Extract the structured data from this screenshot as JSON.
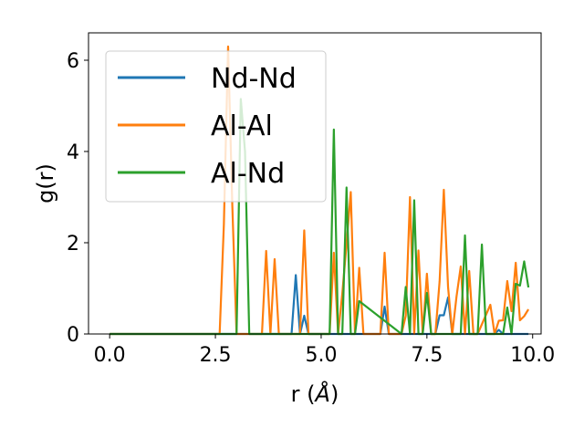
{
  "chart_data": {
    "type": "line",
    "xlabel": "r (",
    "xlabel_unit": "Å",
    "xlabel_close": ")",
    "ylabel": "g(r)",
    "xlim": [
      -0.5,
      10.2
    ],
    "ylim": [
      0,
      6.6
    ],
    "x_ticks": [
      0.0,
      2.5,
      5.0,
      7.5,
      10.0
    ],
    "x_tick_labels": [
      "0.0",
      "2.5",
      "5.0",
      "7.5",
      "10.0"
    ],
    "y_ticks": [
      0,
      2,
      4,
      6
    ],
    "y_tick_labels": [
      "0",
      "2",
      "4",
      "6"
    ],
    "grid": false,
    "legend_position": "upper-left",
    "series": [
      {
        "name": "Nd-Nd",
        "color": "#1f77b4",
        "x": [
          0,
          4.3,
          4.4,
          4.5,
          4.6,
          4.7,
          6.4,
          6.5,
          6.6,
          7.7,
          7.8,
          7.9,
          8.0,
          8.1,
          9.1,
          9.2,
          9.3,
          9.9
        ],
        "y": [
          0,
          0,
          1.29,
          0,
          0.4,
          0,
          0,
          0.6,
          0,
          0,
          0.41,
          0.41,
          0.8,
          0,
          0,
          0.09,
          0,
          0
        ]
      },
      {
        "name": "Al-Al",
        "color": "#ff7f0e",
        "x": [
          0,
          2.6,
          2.7,
          2.8,
          2.9,
          3.0,
          3.6,
          3.7,
          3.8,
          3.9,
          4.0,
          4.5,
          4.6,
          4.7,
          5.2,
          5.3,
          5.4,
          5.5,
          5.6,
          5.7,
          5.8,
          5.9,
          6.0,
          6.4,
          6.5,
          6.6,
          6.9,
          7.0,
          7.1,
          7.2,
          7.3,
          7.4,
          7.5,
          7.6,
          7.7,
          7.8,
          7.9,
          8.0,
          8.1,
          8.2,
          8.3,
          8.4,
          8.5,
          8.6,
          8.7,
          9.0,
          9.1,
          9.2,
          9.3,
          9.4,
          9.5,
          9.6,
          9.7,
          9.8,
          9.9
        ],
        "y": [
          0,
          0,
          2.4,
          6.3,
          2.8,
          0,
          0,
          1.82,
          0,
          1.64,
          0,
          0,
          2.27,
          0,
          0,
          1.78,
          0,
          0.89,
          1.97,
          3.11,
          0,
          1.45,
          0,
          0,
          1.78,
          0,
          0,
          0.4,
          3.0,
          0,
          1.83,
          0,
          1.32,
          0,
          0,
          1.15,
          3.16,
          1.03,
          0,
          0.82,
          1.48,
          0,
          1.38,
          0,
          0,
          0.64,
          0,
          0.29,
          0.3,
          1.16,
          0.5,
          1.56,
          0.3,
          0.39,
          0.54
        ]
      },
      {
        "name": "Al-Nd",
        "color": "#2ca02c",
        "x": [
          0,
          3.0,
          3.1,
          3.2,
          3.3,
          5.2,
          5.3,
          5.4,
          5.5,
          5.6,
          5.7,
          5.8,
          5.9,
          6.9,
          7.0,
          7.1,
          7.2,
          7.3,
          7.4,
          7.5,
          7.6,
          8.3,
          8.4,
          8.5,
          8.7,
          8.8,
          8.9,
          9.3,
          9.4,
          9.5,
          9.6,
          9.7,
          9.8,
          9.9
        ],
        "y": [
          0,
          0,
          5.15,
          4.0,
          0,
          0,
          4.48,
          0,
          0,
          3.21,
          0,
          0,
          0.72,
          0,
          1.03,
          0,
          2.93,
          0,
          0,
          0.9,
          0,
          0,
          2.16,
          0,
          0,
          1.96,
          0,
          0,
          0.58,
          0,
          1.1,
          1.06,
          1.59,
          1.02
        ]
      }
    ]
  }
}
